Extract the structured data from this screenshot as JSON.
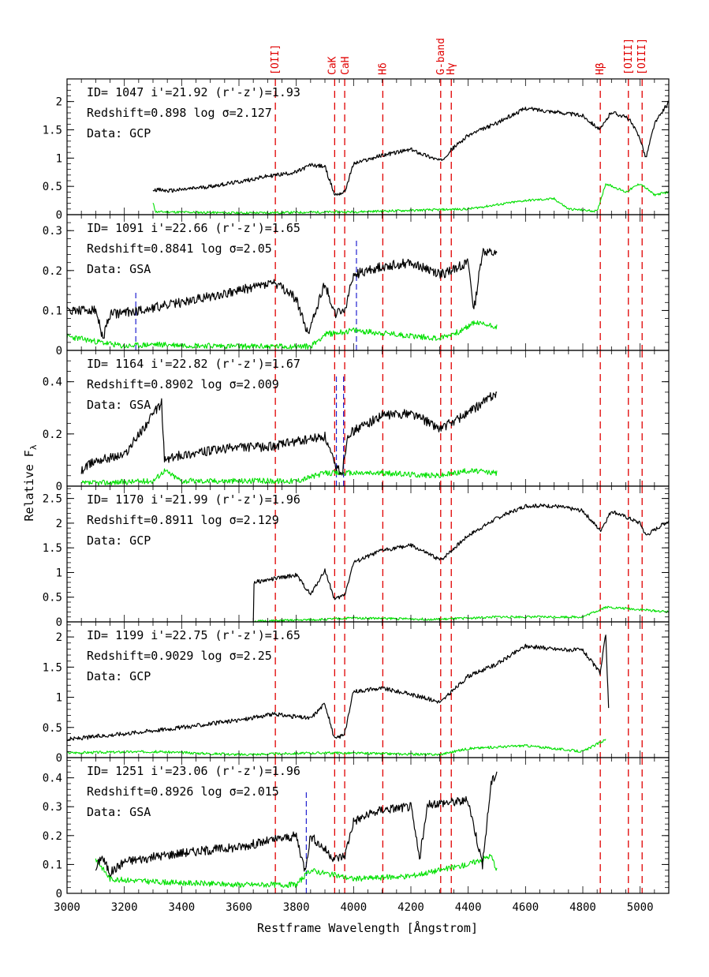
{
  "chart_data": {
    "type": "line",
    "xlabel": "Restframe Wavelength [Ångstrom]",
    "ylabel": "Relative F",
    "ylabel_subscript": "λ",
    "xlim": [
      3000,
      5100
    ],
    "xticks": [
      3000,
      3200,
      3400,
      3600,
      3800,
      4000,
      4200,
      4400,
      4600,
      4800,
      5000
    ],
    "colors": {
      "spectrum": "#000000",
      "error": "#00e000",
      "feature_line": "#e00000",
      "sky_line": "#2020d0"
    },
    "feature_lines": [
      {
        "label": "[OII]",
        "x": 3727
      },
      {
        "label": "CaK",
        "x": 3934
      },
      {
        "label": "CaH",
        "x": 3969
      },
      {
        "label": "Hδ",
        "x": 4102
      },
      {
        "label": "G-band",
        "x": 4304
      },
      {
        "label": "Hγ",
        "x": 4341
      },
      {
        "label": "Hβ",
        "x": 4861
      },
      {
        "label": "[OIII]",
        "x": 4959
      },
      {
        "label": "[OIII]",
        "x": 5007
      }
    ],
    "panels": [
      {
        "line1": "ID= 1047  i'=21.92 (r'-z')=1.93",
        "line2": "Redshift=0.898  log σ=2.127",
        "line3": "Data: GCP",
        "ylim": [
          0,
          2.4
        ],
        "yticks": [
          0,
          0.5,
          1,
          1.5,
          2
        ],
        "ytick_labels": [
          "0",
          "0.5",
          "1",
          "1.5",
          "2"
        ],
        "seed": 11,
        "noise": 0.035,
        "spectrum": [
          [
            3300,
            0.45
          ],
          [
            3350,
            0.42
          ],
          [
            3400,
            0.44
          ],
          [
            3500,
            0.5
          ],
          [
            3600,
            0.58
          ],
          [
            3700,
            0.68
          ],
          [
            3800,
            0.75
          ],
          [
            3850,
            0.88
          ],
          [
            3900,
            0.85
          ],
          [
            3934,
            0.35
          ],
          [
            3969,
            0.4
          ],
          [
            4000,
            0.9
          ],
          [
            4100,
            1.05
          ],
          [
            4200,
            1.15
          ],
          [
            4304,
            0.95
          ],
          [
            4341,
            1.15
          ],
          [
            4400,
            1.4
          ],
          [
            4500,
            1.62
          ],
          [
            4600,
            1.88
          ],
          [
            4700,
            1.82
          ],
          [
            4800,
            1.75
          ],
          [
            4861,
            1.5
          ],
          [
            4900,
            1.82
          ],
          [
            4960,
            1.7
          ],
          [
            5000,
            1.35
          ],
          [
            5020,
            1.0
          ],
          [
            5050,
            1.6
          ],
          [
            5100,
            2.0
          ]
        ],
        "error": [
          [
            3300,
            0.2
          ],
          [
            3310,
            0.05
          ],
          [
            3600,
            0.03
          ],
          [
            4000,
            0.05
          ],
          [
            4400,
            0.1
          ],
          [
            4600,
            0.25
          ],
          [
            4700,
            0.28
          ],
          [
            4750,
            0.1
          ],
          [
            4850,
            0.06
          ],
          [
            4880,
            0.55
          ],
          [
            4950,
            0.4
          ],
          [
            5000,
            0.55
          ],
          [
            5050,
            0.35
          ],
          [
            5100,
            0.4
          ]
        ],
        "sky_lines": []
      },
      {
        "line1": "ID= 1091  i'=22.66 (r'-z')=1.65",
        "line2": "Redshift=0.8841  log σ=2.05",
        "line3": "Data: GSA",
        "ylim": [
          0,
          0.34
        ],
        "yticks": [
          0,
          0.1,
          0.2,
          0.3
        ],
        "ytick_labels": [
          "0",
          "0.1",
          "0.2",
          "0.3"
        ],
        "seed": 23,
        "noise": 0.012,
        "spectrum": [
          [
            3000,
            0.1
          ],
          [
            3100,
            0.1
          ],
          [
            3125,
            0.03
          ],
          [
            3150,
            0.09
          ],
          [
            3250,
            0.1
          ],
          [
            3400,
            0.12
          ],
          [
            3600,
            0.15
          ],
          [
            3720,
            0.17
          ],
          [
            3800,
            0.13
          ],
          [
            3840,
            0.04
          ],
          [
            3900,
            0.17
          ],
          [
            3934,
            0.09
          ],
          [
            3969,
            0.1
          ],
          [
            4000,
            0.19
          ],
          [
            4100,
            0.21
          ],
          [
            4200,
            0.22
          ],
          [
            4304,
            0.19
          ],
          [
            4400,
            0.22
          ],
          [
            4420,
            0.1
          ],
          [
            4450,
            0.25
          ],
          [
            4500,
            0.24
          ]
        ],
        "error": [
          [
            3000,
            0.035
          ],
          [
            3200,
            0.01
          ],
          [
            3300,
            0.015
          ],
          [
            3600,
            0.01
          ],
          [
            3850,
            0.01
          ],
          [
            3900,
            0.04
          ],
          [
            4000,
            0.05
          ],
          [
            4300,
            0.03
          ],
          [
            4380,
            0.05
          ],
          [
            4420,
            0.07
          ],
          [
            4500,
            0.06
          ]
        ],
        "sky_lines": [
          [
            3240,
            0.0,
            0.15
          ],
          [
            4010,
            0.0,
            0.28
          ]
        ]
      },
      {
        "line1": "ID= 1164  i'=22.82 (r'-z')=1.67",
        "line2": "Redshift=0.8902  log σ=2.009",
        "line3": "Data: GSA",
        "ylim": [
          0,
          0.52
        ],
        "yticks": [
          0,
          0.2,
          0.4
        ],
        "ytick_labels": [
          "0",
          "0.2",
          "0.4"
        ],
        "seed": 37,
        "noise": 0.018,
        "spectrum": [
          [
            3050,
            0.06
          ],
          [
            3100,
            0.1
          ],
          [
            3200,
            0.12
          ],
          [
            3330,
            0.32
          ],
          [
            3340,
            0.1
          ],
          [
            3400,
            0.12
          ],
          [
            3600,
            0.15
          ],
          [
            3700,
            0.15
          ],
          [
            3800,
            0.17
          ],
          [
            3900,
            0.19
          ],
          [
            3934,
            0.08
          ],
          [
            3960,
            0.05
          ],
          [
            3980,
            0.2
          ],
          [
            4100,
            0.27
          ],
          [
            4200,
            0.28
          ],
          [
            4304,
            0.22
          ],
          [
            4400,
            0.28
          ],
          [
            4500,
            0.36
          ]
        ],
        "error": [
          [
            3050,
            0.01
          ],
          [
            3300,
            0.02
          ],
          [
            3340,
            0.06
          ],
          [
            3400,
            0.02
          ],
          [
            3800,
            0.02
          ],
          [
            3900,
            0.05
          ],
          [
            4100,
            0.05
          ],
          [
            4300,
            0.04
          ],
          [
            4400,
            0.06
          ],
          [
            4500,
            0.05
          ]
        ],
        "sky_lines": [
          [
            3940,
            0.0,
            0.42
          ],
          [
            3965,
            0.0,
            0.42
          ]
        ]
      },
      {
        "line1": "ID= 1170  i'=21.99 (r'-z')=1.96",
        "line2": "Redshift=0.8911  log σ=2.129",
        "line3": "Data: GCP",
        "ylim": [
          0,
          2.75
        ],
        "yticks": [
          0,
          0.5,
          1,
          1.5,
          2,
          2.5
        ],
        "ytick_labels": [
          "0",
          "0.5",
          "1",
          "1.5",
          "2",
          "2.5"
        ],
        "seed": 51,
        "noise": 0.04,
        "spectrum": [
          [
            3650,
            0.0
          ],
          [
            3652,
            0.8
          ],
          [
            3700,
            0.85
          ],
          [
            3800,
            0.95
          ],
          [
            3850,
            0.55
          ],
          [
            3900,
            1.05
          ],
          [
            3934,
            0.45
          ],
          [
            3969,
            0.55
          ],
          [
            4000,
            1.2
          ],
          [
            4100,
            1.45
          ],
          [
            4200,
            1.55
          ],
          [
            4304,
            1.25
          ],
          [
            4400,
            1.75
          ],
          [
            4500,
            2.1
          ],
          [
            4600,
            2.35
          ],
          [
            4700,
            2.35
          ],
          [
            4800,
            2.25
          ],
          [
            4861,
            1.85
          ],
          [
            4900,
            2.25
          ],
          [
            5000,
            2.0
          ],
          [
            5020,
            1.75
          ],
          [
            5100,
            2.05
          ]
        ],
        "error": [
          [
            3650,
            0.01
          ],
          [
            3900,
            0.05
          ],
          [
            4000,
            0.08
          ],
          [
            4300,
            0.05
          ],
          [
            4500,
            0.1
          ],
          [
            4800,
            0.1
          ],
          [
            4880,
            0.3
          ],
          [
            5000,
            0.25
          ],
          [
            5100,
            0.2
          ]
        ],
        "sky_lines": []
      },
      {
        "line1": "ID= 1199  i'=22.75 (r'-z')=1.65",
        "line2": "Redshift=0.9029  log σ=2.25",
        "line3": "Data: GCP",
        "ylim": [
          0,
          2.25
        ],
        "yticks": [
          0,
          0.5,
          1,
          1.5,
          2
        ],
        "ytick_labels": [
          "0",
          "0.5",
          "1",
          "1.5",
          "2"
        ],
        "seed": 67,
        "noise": 0.035,
        "spectrum": [
          [
            3000,
            0.3
          ],
          [
            3100,
            0.35
          ],
          [
            3200,
            0.4
          ],
          [
            3400,
            0.5
          ],
          [
            3600,
            0.62
          ],
          [
            3720,
            0.72
          ],
          [
            3850,
            0.65
          ],
          [
            3900,
            0.9
          ],
          [
            3934,
            0.3
          ],
          [
            3969,
            0.4
          ],
          [
            4000,
            1.1
          ],
          [
            4100,
            1.15
          ],
          [
            4200,
            1.05
          ],
          [
            4304,
            0.92
          ],
          [
            4400,
            1.35
          ],
          [
            4500,
            1.55
          ],
          [
            4600,
            1.85
          ],
          [
            4700,
            1.8
          ],
          [
            4800,
            1.78
          ],
          [
            4861,
            1.4
          ],
          [
            4880,
            2.05
          ],
          [
            4890,
            0.8
          ]
        ],
        "error": [
          [
            3000,
            0.08
          ],
          [
            3300,
            0.1
          ],
          [
            3600,
            0.05
          ],
          [
            3900,
            0.08
          ],
          [
            4300,
            0.05
          ],
          [
            4400,
            0.15
          ],
          [
            4600,
            0.2
          ],
          [
            4800,
            0.1
          ],
          [
            4880,
            0.3
          ]
        ],
        "sky_lines": []
      },
      {
        "line1": "ID= 1251  i'=23.06 (r'-z')=1.96",
        "line2": "Redshift=0.8926  log σ=2.015",
        "line3": "Data: GSA",
        "ylim": [
          0,
          0.47
        ],
        "yticks": [
          0,
          0.1,
          0.2,
          0.3,
          0.4
        ],
        "ytick_labels": [
          "0",
          "0.1",
          "0.2",
          "0.3",
          "0.4"
        ],
        "seed": 83,
        "noise": 0.016,
        "spectrum": [
          [
            3100,
            0.08
          ],
          [
            3120,
            0.13
          ],
          [
            3150,
            0.07
          ],
          [
            3200,
            0.11
          ],
          [
            3330,
            0.13
          ],
          [
            3400,
            0.14
          ],
          [
            3600,
            0.16
          ],
          [
            3700,
            0.18
          ],
          [
            3800,
            0.2
          ],
          [
            3830,
            0.08
          ],
          [
            3850,
            0.2
          ],
          [
            3934,
            0.12
          ],
          [
            3969,
            0.13
          ],
          [
            4000,
            0.25
          ],
          [
            4100,
            0.29
          ],
          [
            4200,
            0.3
          ],
          [
            4230,
            0.12
          ],
          [
            4260,
            0.31
          ],
          [
            4400,
            0.32
          ],
          [
            4450,
            0.1
          ],
          [
            4480,
            0.38
          ],
          [
            4500,
            0.42
          ]
        ],
        "error": [
          [
            3100,
            0.12
          ],
          [
            3150,
            0.05
          ],
          [
            3300,
            0.04
          ],
          [
            3600,
            0.03
          ],
          [
            3800,
            0.03
          ],
          [
            3850,
            0.08
          ],
          [
            4000,
            0.05
          ],
          [
            4200,
            0.06
          ],
          [
            4400,
            0.1
          ],
          [
            4480,
            0.13
          ],
          [
            4500,
            0.08
          ]
        ],
        "sky_lines": [
          [
            3835,
            0.0,
            0.36
          ]
        ]
      }
    ]
  }
}
